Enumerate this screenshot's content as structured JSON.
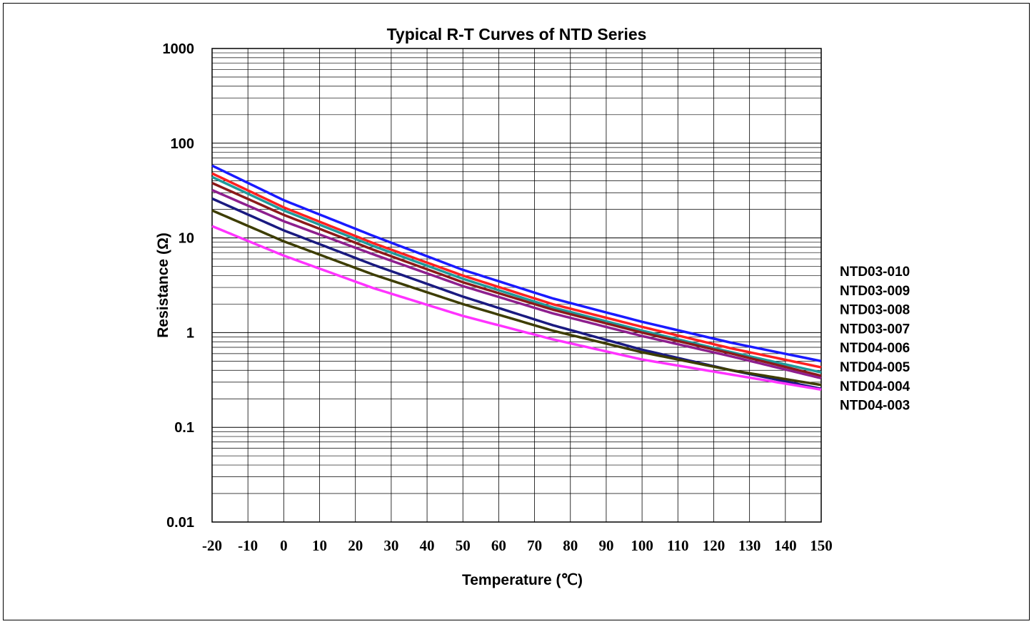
{
  "chart_data": {
    "type": "line",
    "title": "Typical R-T Curves of  NTD Series",
    "xlabel": "Temperature (℃)",
    "ylabel": "Resistance (Ω)",
    "xlim": [
      -20,
      150
    ],
    "ylim": [
      0.01,
      1000
    ],
    "y_scale": "log",
    "grid": true,
    "legend_position": "right",
    "x_ticks": [
      "-20",
      "-10",
      "0",
      "10",
      "20",
      "30",
      "40",
      "50",
      "60",
      "70",
      "80",
      "90",
      "100",
      "110",
      "120",
      "130",
      "140",
      "150"
    ],
    "y_ticks": [
      "1000",
      "100",
      "10",
      "1",
      "0.1",
      "0.01"
    ],
    "x": [
      -20,
      0,
      25,
      50,
      75,
      100,
      125,
      150
    ],
    "series": [
      {
        "name": "NTD03-010",
        "color": "#1a1aff",
        "values": [
          58,
          25,
          10.5,
          4.6,
          2.3,
          1.3,
          0.78,
          0.5
        ]
      },
      {
        "name": "NTD03-009",
        "color": "#ff2020",
        "values": [
          48,
          21,
          8.8,
          4.0,
          2.0,
          1.15,
          0.68,
          0.43
        ]
      },
      {
        "name": "NTD03-008",
        "color": "#1f9a9a",
        "values": [
          44,
          19.5,
          8.2,
          3.7,
          1.85,
          1.05,
          0.62,
          0.38
        ]
      },
      {
        "name": "NTD03-007",
        "color": "#8b1a1a",
        "values": [
          38,
          17.5,
          7.5,
          3.4,
          1.75,
          1.0,
          0.6,
          0.35
        ]
      },
      {
        "name": "NTD04-006",
        "color": "#8e1f8e",
        "values": [
          32,
          15,
          6.7,
          3.1,
          1.6,
          0.92,
          0.56,
          0.33
        ]
      },
      {
        "name": "NTD04-005",
        "color": "#1a1a80",
        "values": [
          26,
          12,
          5.2,
          2.4,
          1.2,
          0.66,
          0.4,
          0.255
        ]
      },
      {
        "name": "NTD04-004",
        "color": "#3d3d00",
        "values": [
          19.5,
          9.2,
          4.1,
          2.0,
          1.05,
          0.62,
          0.4,
          0.28
        ]
      },
      {
        "name": "NTD04-003",
        "color": "#ff33ff",
        "values": [
          13.3,
          6.5,
          2.95,
          1.5,
          0.85,
          0.52,
          0.36,
          0.25
        ]
      }
    ]
  }
}
